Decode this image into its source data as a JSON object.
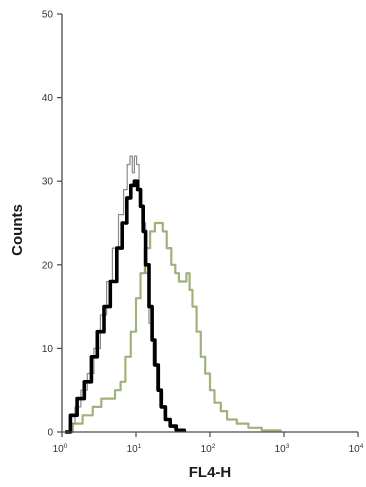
{
  "chart_data": {
    "type": "histogram",
    "title": "",
    "xlabel": "FL4-H",
    "ylabel": "Counts",
    "x_scale": "log",
    "xlim": [
      1,
      10000
    ],
    "ylim": [
      0,
      50
    ],
    "x_ticks": [
      {
        "base": "10",
        "exp": "0",
        "value": 1
      },
      {
        "base": "10",
        "exp": "1",
        "value": 10
      },
      {
        "base": "10",
        "exp": "2",
        "value": 100
      },
      {
        "base": "10",
        "exp": "3",
        "value": 1000
      },
      {
        "base": "10",
        "exp": "4",
        "value": 10000
      }
    ],
    "y_ticks": [
      "0",
      "10",
      "20",
      "30",
      "40",
      "50"
    ],
    "grid": false,
    "legend": "none",
    "series": [
      {
        "color": "#9fb27a",
        "stroke_width": 2.2,
        "points": [
          [
            1.15,
            0
          ],
          [
            1.4,
            1
          ],
          [
            1.9,
            2
          ],
          [
            2.6,
            3
          ],
          [
            3.4,
            4
          ],
          [
            4.3,
            4
          ],
          [
            5.2,
            5
          ],
          [
            6.2,
            6
          ],
          [
            7.2,
            9
          ],
          [
            8.5,
            12
          ],
          [
            10,
            16
          ],
          [
            11.5,
            19
          ],
          [
            13.2,
            22
          ],
          [
            15.5,
            24
          ],
          [
            18,
            25
          ],
          [
            20.5,
            25
          ],
          [
            23,
            24
          ],
          [
            26,
            22
          ],
          [
            30,
            20
          ],
          [
            34,
            19
          ],
          [
            38,
            18
          ],
          [
            43,
            18
          ],
          [
            48,
            19
          ],
          [
            53,
            17
          ],
          [
            58,
            15
          ],
          [
            66,
            12
          ],
          [
            75,
            9
          ],
          [
            86,
            7
          ],
          [
            100,
            5
          ],
          [
            115,
            3.5
          ],
          [
            140,
            2.5
          ],
          [
            170,
            1.5
          ],
          [
            230,
            1
          ],
          [
            330,
            0.5
          ],
          [
            500,
            0.2
          ],
          [
            900,
            0
          ]
        ]
      },
      {
        "color": "#8a8a8a",
        "stroke_width": 1.2,
        "points": [
          [
            1.1,
            0
          ],
          [
            1.25,
            1
          ],
          [
            1.5,
            3
          ],
          [
            1.8,
            5
          ],
          [
            2.2,
            7
          ],
          [
            2.7,
            10
          ],
          [
            3.3,
            14
          ],
          [
            4,
            18
          ],
          [
            4.8,
            22
          ],
          [
            5.8,
            26
          ],
          [
            6.8,
            29
          ],
          [
            7.6,
            32
          ],
          [
            8.3,
            33
          ],
          [
            8.9,
            31
          ],
          [
            9.5,
            33
          ],
          [
            10.2,
            32
          ],
          [
            11,
            29
          ],
          [
            12,
            25
          ],
          [
            13.5,
            19
          ],
          [
            15,
            13
          ],
          [
            17,
            8
          ],
          [
            19,
            5
          ],
          [
            21,
            3
          ],
          [
            24,
            1.5
          ],
          [
            28,
            0.8
          ],
          [
            33,
            0.3
          ],
          [
            45,
            0
          ]
        ]
      },
      {
        "color": "#000000",
        "stroke_width": 3.6,
        "points": [
          [
            1.1,
            0
          ],
          [
            1.3,
            2
          ],
          [
            1.6,
            4
          ],
          [
            2,
            6
          ],
          [
            2.5,
            9
          ],
          [
            3,
            12
          ],
          [
            3.7,
            15
          ],
          [
            4.5,
            18
          ],
          [
            5.5,
            22
          ],
          [
            6.5,
            25
          ],
          [
            7.5,
            28
          ],
          [
            8.5,
            29.5
          ],
          [
            9.5,
            30
          ],
          [
            10.5,
            29
          ],
          [
            11.5,
            27
          ],
          [
            12.5,
            24
          ],
          [
            13.5,
            20
          ],
          [
            15,
            15
          ],
          [
            16.5,
            11
          ],
          [
            18,
            8
          ],
          [
            20,
            5
          ],
          [
            22,
            3
          ],
          [
            25,
            1.5
          ],
          [
            29,
            0.7
          ],
          [
            35,
            0.2
          ],
          [
            45,
            0
          ]
        ]
      }
    ]
  }
}
